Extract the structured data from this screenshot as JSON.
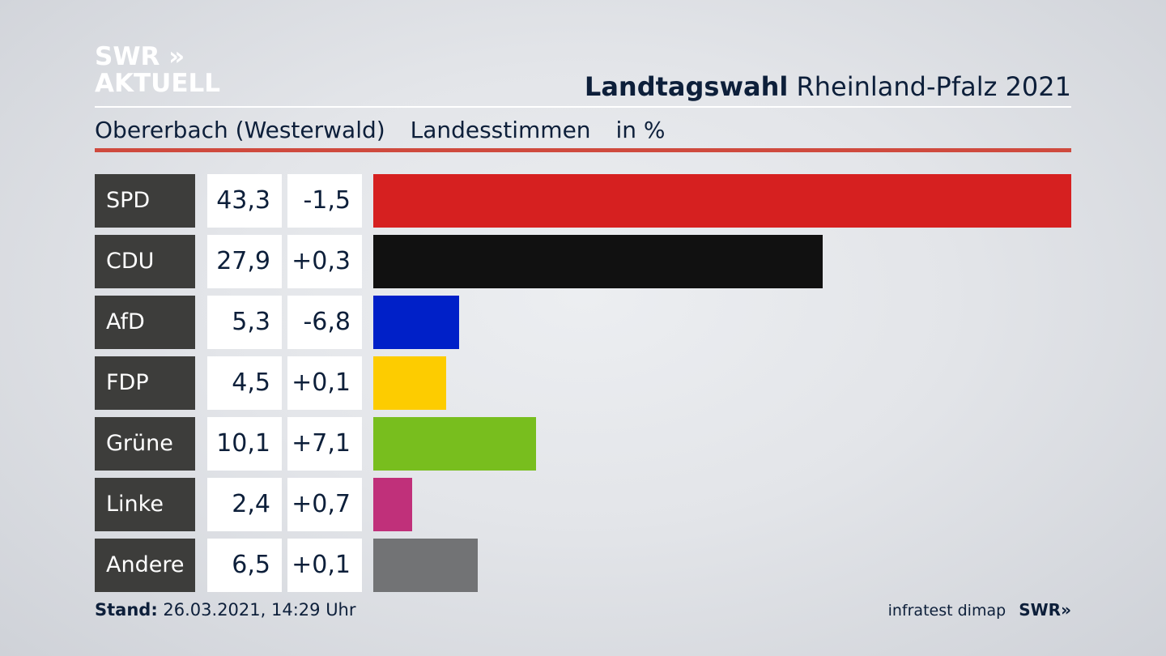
{
  "header": {
    "logo_line1": "SWR »",
    "logo_line2": "AKTUELL",
    "title_bold": "Landtagswahl",
    "title_rest": "Rheinland-Pfalz 2021",
    "location": "Obererbach (Westerwald)",
    "measure": "Landesstimmen",
    "unit": "in %"
  },
  "chart_data": {
    "type": "bar",
    "categories": [
      "SPD",
      "CDU",
      "AfD",
      "FDP",
      "Grüne",
      "Linke",
      "Andere"
    ],
    "values": [
      43.3,
      27.9,
      5.3,
      4.5,
      10.1,
      2.4,
      6.5
    ],
    "value_labels": [
      "43,3",
      "27,9",
      "5,3",
      "4,5",
      "10,1",
      "2,4",
      "6,5"
    ],
    "diff_labels": [
      "-1,5",
      "+0,3",
      "-6,8",
      "+0,1",
      "+7,1",
      "+0,7",
      "+0,1"
    ],
    "colors": [
      "#d62020",
      "#111111",
      "#0020c8",
      "#fdcc00",
      "#78be1e",
      "#c0307a",
      "#727375"
    ],
    "orientation": "horizontal",
    "unit": "in %"
  },
  "footer": {
    "stand_label": "Stand:",
    "stand_value": "26.03.2021, 14:29 Uhr",
    "source": "infratest dimap",
    "source_logo": "SWR»"
  }
}
